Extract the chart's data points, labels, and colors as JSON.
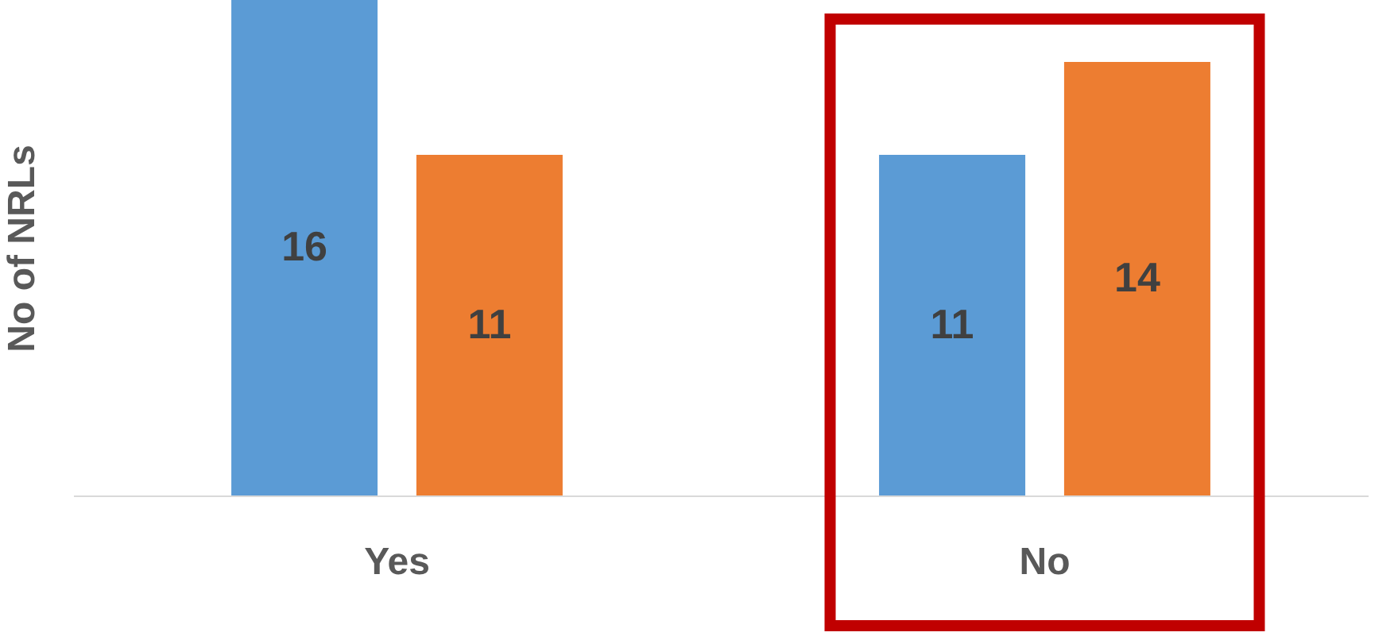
{
  "chart_data": {
    "type": "bar",
    "ylabel": "No of NRLs",
    "categories": [
      "Yes",
      "No"
    ],
    "series": [
      {
        "color": "#5b9bd5",
        "values": [
          16,
          11
        ]
      },
      {
        "color": "#ed7d31",
        "values": [
          11,
          14
        ]
      }
    ],
    "data_labels": true,
    "grid": false
  }
}
